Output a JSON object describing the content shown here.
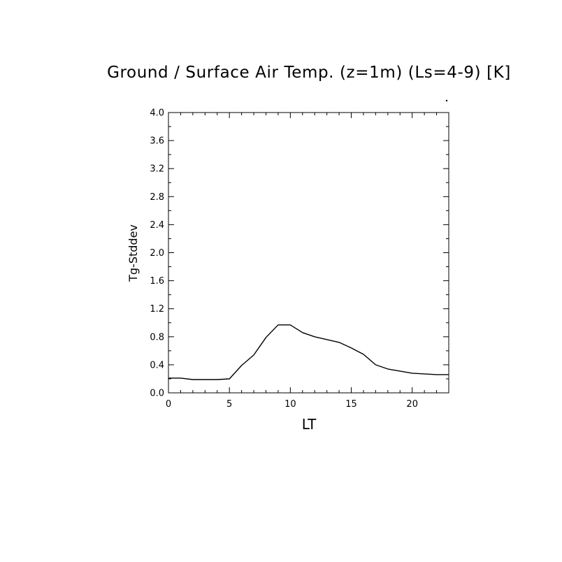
{
  "chart_data": {
    "type": "line",
    "title": "Ground / Surface Air Temp. (z=1m) (Ls=4-9) [K]",
    "xlabel": "LT",
    "ylabel": "Tg-Stddev",
    "xlim": [
      0,
      23
    ],
    "ylim": [
      0.0,
      4.0
    ],
    "x_ticks": [
      0,
      5,
      10,
      15,
      20
    ],
    "x_tick_labels": [
      "0",
      "5",
      "10",
      "15",
      "20"
    ],
    "y_ticks": [
      0.0,
      0.4,
      0.8,
      1.2,
      1.6,
      2.0,
      2.4,
      2.8,
      3.2,
      3.6,
      4.0
    ],
    "y_tick_labels": [
      "0.0",
      "0.4",
      "0.8",
      "1.2",
      "1.6",
      "2.0",
      "2.4",
      "2.8",
      "3.2",
      "3.6",
      "4.0"
    ],
    "grid": false,
    "legend": "none",
    "series": [
      {
        "x": [
          0,
          1,
          2,
          3,
          4,
          5,
          6,
          7,
          8,
          9,
          10,
          11,
          12,
          13,
          14,
          15,
          16,
          17,
          18,
          19,
          20,
          21,
          22,
          23
        ],
        "values": [
          0.21,
          0.21,
          0.19,
          0.19,
          0.19,
          0.2,
          0.39,
          0.54,
          0.79,
          0.97,
          0.97,
          0.86,
          0.8,
          0.76,
          0.72,
          0.64,
          0.55,
          0.4,
          0.34,
          0.31,
          0.28,
          0.27,
          0.26,
          0.26
        ],
        "color": "#000000"
      }
    ]
  }
}
